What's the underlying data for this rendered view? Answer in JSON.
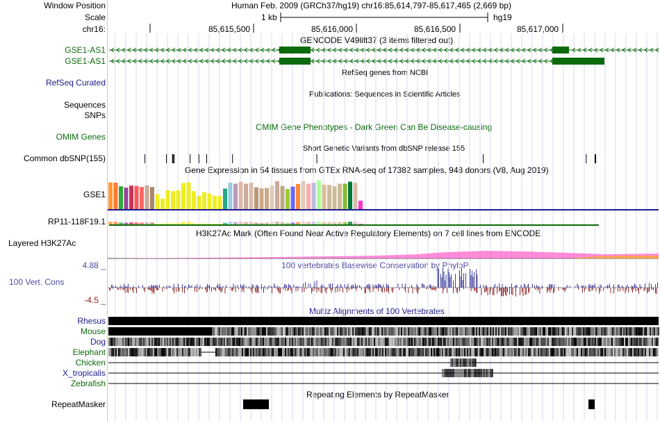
{
  "labels": {
    "window_position": "Window Position",
    "scale": "Scale",
    "chrom": "chr16:",
    "gse1_as1_a": "GSE1-AS1",
    "gse1_as1_b": "GSE1-AS1",
    "refseq": "RefSeq Curated",
    "sequences": "Sequences",
    "snps": "SNPs",
    "omim": "OMIM Genes",
    "dbsnp": "Common dbSNP(155)",
    "gse1": "GSE1",
    "rp11": "RP11-118F19.1",
    "h3k27ac": "Layered H3K27Ac",
    "cons_max": "4.88 _",
    "cons": "100 Vert. Cons",
    "cons_min": "-4.5 _",
    "species": [
      "Rhesus",
      "Mouse",
      "Dog",
      "Elephant",
      "Chicken",
      "X_tropicalis",
      "Zebrafish"
    ],
    "repeatmasker": "RepeatMasker"
  },
  "header": {
    "position": "Human Feb. 2009 (GRCh37/hg19)   chr16:85,614,797-85,617,465 (2,669 bp)",
    "scale_text": "1 kb",
    "assembly": "hg19",
    "ticks": [
      "85,615,500",
      "85,616,000",
      "85,616,500",
      "85,617,000"
    ]
  },
  "track_titles": {
    "gencode": "GENCODE V49lift37 (3 items filtered out)",
    "refseq": "RefSeq genes from NCBI",
    "publications": "Publications: Sequences in Scientific Articles",
    "omim": "OMIM Gene Phenotypes - Dark Green Can Be Disease-causing",
    "dbsnp": "Short Genetic Variants from dbSNP release 155",
    "gtex": "Gene Expression in 54 tissues from GTEx RNA-seq of 17382 samples, 948 donors (V8, Aug 2019)",
    "h3k27ac": "H3K27Ac Mark (Often Found Near Active Regulatory Elements) on 7 cell lines from ENCODE",
    "phylop": "100 vertebrates Basewise Conservation by PhyloP",
    "multiz": "Multiz Alignments of 100 Vertebrates",
    "repeatmasker": "Repeating Elements by RepeatMasker"
  },
  "colors": {
    "gene_green": "#0b6a0b",
    "navy": "#1a1a8c",
    "phylop_pos": "#3c3c9c",
    "phylop_neg": "#8b2a2a",
    "grid": "#d8d8f0",
    "h3k27ac": "#ff66cc"
  },
  "gtex_colors": [
    "#ff9933",
    "#ff7a33",
    "#33aa33",
    "#994499",
    "#cc3355",
    "#ff5555",
    "#ff6666",
    "#ccaa99",
    "#aa8866",
    "#eeee22",
    "#eeee22",
    "#eeee22",
    "#eeee22",
    "#eeee22",
    "#eeee22",
    "#eeee22",
    "#eeee22",
    "#eeee22",
    "#eeee22",
    "#eeee22",
    "#eeee22",
    "#eeee22",
    "#22aa88",
    "#99ccdd",
    "#bb99bb",
    "#ddbbaa",
    "#ccaa99",
    "#ddbbaa",
    "#bb9977",
    "#ccaa88",
    "#ccaa88",
    "#ddccbb",
    "#ccaa99",
    "#bbaa88",
    "#99cc33",
    "#6666ff",
    "#ff8833",
    "#ddccbb",
    "#ffaaaa",
    "#bbbbdd",
    "#aaff99",
    "#ddbb99",
    "#ccbb99",
    "#ccbb99",
    "#ccbb99",
    "#88bb33",
    "#007733",
    "#ddbbaa",
    "#ff33cc"
  ],
  "gtex_values": [
    0.84,
    0.83,
    0.72,
    0.68,
    0.74,
    0.73,
    0.7,
    0.75,
    0.7,
    0.48,
    0.34,
    0.6,
    0.57,
    0.6,
    0.82,
    0.84,
    0.57,
    0.43,
    0.54,
    0.5,
    0.43,
    0.42,
    0.65,
    0.83,
    0.8,
    0.86,
    0.8,
    0.83,
    0.69,
    0.66,
    0.67,
    0.74,
    0.88,
    0.73,
    0.64,
    0.71,
    0.79,
    0.88,
    0.8,
    0.83,
    0.9,
    0.77,
    0.76,
    0.72,
    0.8,
    0.8,
    0.86,
    0.83,
    0.28
  ],
  "dbsnp_positions": [
    0.067,
    0.106,
    0.117,
    0.12,
    0.149,
    0.165,
    0.179,
    0.226,
    0.379,
    0.681,
    0.868,
    0.884
  ],
  "multiz_species": [
    "Rhesus",
    "Mouse",
    "Dog",
    "Elephant",
    "Chicken",
    "X_tropicalis",
    "Zebrafish"
  ]
}
